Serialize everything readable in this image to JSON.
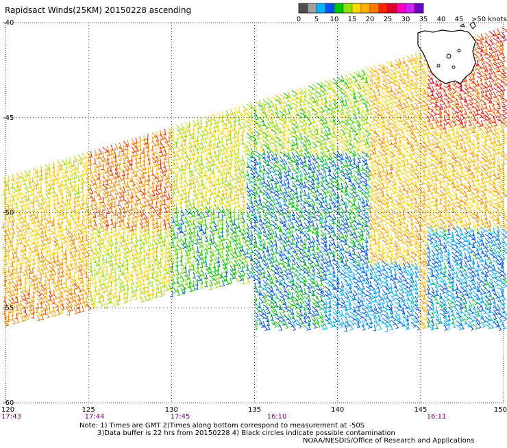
{
  "title": "Rapidsact Winds(25KM) 20150228 ascending",
  "legend": {
    "colors": [
      "#505050",
      "#a0a0a0",
      "#00b4ff",
      "#0050ff",
      "#00c800",
      "#90e000",
      "#ffd800",
      "#ffb000",
      "#ff7800",
      "#ff2000",
      "#e00030",
      "#ff00c0",
      "#d020ff",
      "#7000c0"
    ],
    "labels": [
      "0",
      "5",
      "10",
      "15",
      "20",
      "25",
      "30",
      "35",
      "40",
      "45",
      ">50 knots"
    ]
  },
  "axes": {
    "lon_labels": [
      "120",
      "125",
      "130",
      "135",
      "140",
      "145",
      "150"
    ],
    "lat_labels": [
      "-40",
      "-45",
      "-50",
      "-55",
      "-60"
    ],
    "times": [
      "17:43",
      "17:44",
      "17:45",
      "16:10",
      "16:11"
    ]
  },
  "notes": {
    "line1": "Note: 1) Times are GMT 2)Times along bottom correspond to measurement at -50S",
    "line2": "3)Data buffer is 22 hrs from 20150228 4) Black circles indicate possible contamination",
    "line3": "NOAA/NESDIS/Office of Research and Applications"
  }
}
